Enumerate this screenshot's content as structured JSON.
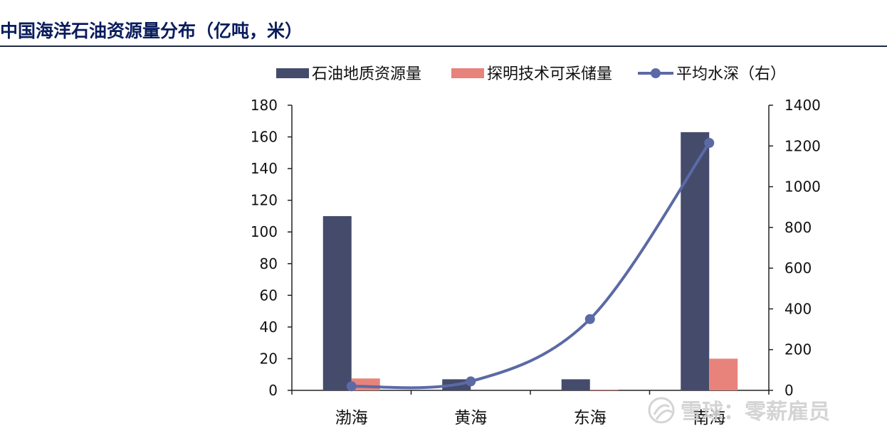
{
  "header": {
    "title": "中国海洋石油资源量分布（亿吨，米）"
  },
  "watermark": {
    "text": "雪球：零薪雇员",
    "icon": "xueqiu-logo-icon"
  },
  "colors": {
    "title": "#0a1c5c",
    "bar_resource": "#454b6b",
    "bar_reserve": "#e8837c",
    "line_depth": "#5b6aa5"
  },
  "chart_data": {
    "type": "bar",
    "categories": [
      "渤海",
      "黄海",
      "东海",
      "南海"
    ],
    "series": [
      {
        "name": "石油地质资源量",
        "type": "bar",
        "axis": "left",
        "values": [
          110,
          7,
          7,
          163
        ]
      },
      {
        "name": "探明技术可采储量",
        "type": "bar",
        "axis": "left",
        "values": [
          7.5,
          0,
          0.5,
          20
        ]
      },
      {
        "name": "平均水深（右）",
        "type": "line",
        "axis": "right",
        "smooth": true,
        "markers": true,
        "values": [
          20,
          44,
          350,
          1215
        ]
      }
    ],
    "y_left": {
      "ylim": [
        0,
        180
      ],
      "ticks": [
        0,
        20,
        40,
        60,
        80,
        100,
        120,
        140,
        160,
        180
      ]
    },
    "y_right": {
      "ylim": [
        0,
        1400
      ],
      "ticks": [
        0,
        200,
        400,
        600,
        800,
        1000,
        1200,
        1400
      ]
    },
    "legend": {
      "placement": "top-center"
    },
    "grid": false
  }
}
